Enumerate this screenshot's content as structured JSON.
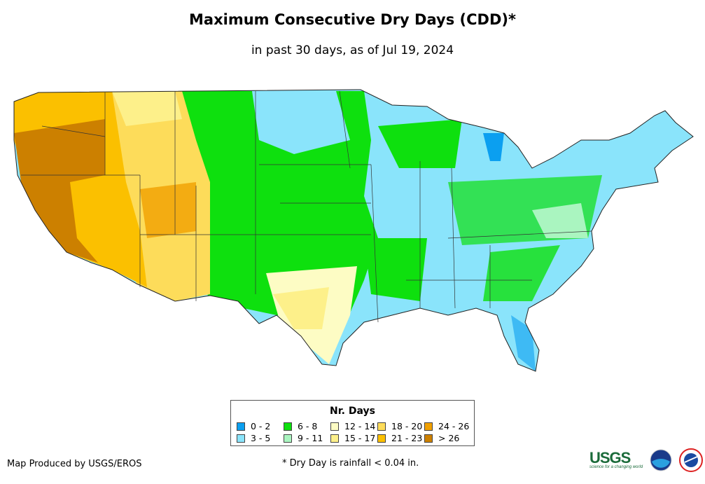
{
  "title": "Maximum Consecutive Dry Days (CDD)*",
  "subtitle": "in past 30 days, as of Jul 19, 2024",
  "legend": {
    "title": "Nr. Days",
    "items": [
      {
        "label": "0 - 2",
        "color": "#0b9ff0"
      },
      {
        "label": "3 - 5",
        "color": "#8ae4fb"
      },
      {
        "label": "6 - 8",
        "color": "#0ee00e"
      },
      {
        "label": "9 - 11",
        "color": "#aaf5c0"
      },
      {
        "label": "12 - 14",
        "color": "#fdfcc4"
      },
      {
        "label": "15 - 17",
        "color": "#fdf08a"
      },
      {
        "label": "18 - 20",
        "color": "#fddc5a"
      },
      {
        "label": "21 - 23",
        "color": "#fbc000"
      },
      {
        "label": "24 - 26",
        "color": "#f0a000"
      },
      {
        "label": "> 26",
        "color": "#cc8000"
      }
    ]
  },
  "credit": "Map Produced by USGS/EROS",
  "footnote": "* Dry Day is rainfall < 0.04 in.",
  "logos": {
    "usgs": "USGS",
    "usgs_tagline": "science for a changing world",
    "noaa": "noaa",
    "nws": "National Weather Service"
  }
}
